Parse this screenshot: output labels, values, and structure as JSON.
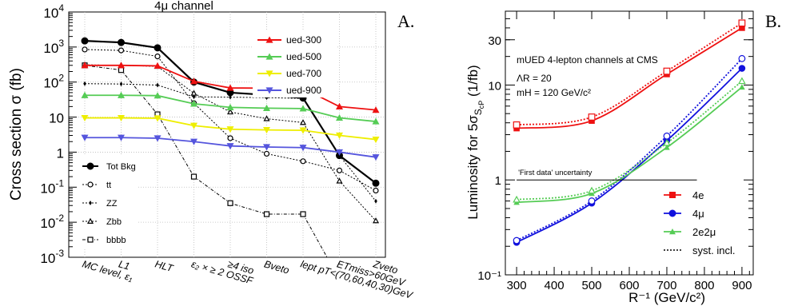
{
  "panels": {
    "a": "A.",
    "b": "B."
  },
  "chart_data": [
    {
      "type": "line",
      "title": "4μ channel",
      "ylabel": "Cross section σ (fb)",
      "yscale": "log",
      "ylim": [
        0.001,
        10000
      ],
      "grid": true,
      "categories": [
        "MC level, ε₁",
        "L1",
        "HLT",
        "ε₂ × ≥ 2 OSSF",
        "≥4 iso",
        "Bveto",
        "lept pT<(70,60,40,30)GeV",
        "ETmiss>60GeV",
        "Zveto"
      ],
      "yticks": [
        {
          "v": 0.001,
          "m": "10",
          "e": "-3"
        },
        {
          "v": 0.01,
          "m": "10",
          "e": "-2"
        },
        {
          "v": 0.1,
          "m": "10",
          "e": "-1"
        },
        {
          "v": 1,
          "m": "1",
          "e": ""
        },
        {
          "v": 10,
          "m": "10",
          "e": ""
        },
        {
          "v": 100,
          "m": "10",
          "e": "2"
        },
        {
          "v": 1000,
          "m": "10",
          "e": "3"
        },
        {
          "v": 10000,
          "m": "10",
          "e": "4"
        }
      ],
      "series": [
        {
          "name": "Tot Bkg",
          "color": "#000000",
          "marker": "filled-circle",
          "dash": "",
          "values": [
            1500,
            1350,
            950,
            100,
            50,
            43,
            35,
            0.8,
            0.13
          ]
        },
        {
          "name": "tt",
          "color": "#000000",
          "marker": "open-circle",
          "dash": "2,2",
          "values": [
            850,
            800,
            540,
            25,
            2.5,
            0.9,
            0.55,
            0.3,
            0.08
          ]
        },
        {
          "name": "ZZ",
          "color": "#000000",
          "marker": "diamond",
          "dash": "2,2",
          "values": [
            90,
            88,
            82,
            38,
            37,
            36,
            34,
            0.8,
            0.04
          ]
        },
        {
          "name": "Zbb",
          "color": "#000000",
          "marker": "open-triangle",
          "dash": "2,2",
          "values": [
            310,
            300,
            280,
            48,
            14,
            9,
            7,
            0.15,
            0.011
          ]
        },
        {
          "name": "bbbb",
          "color": "#000000",
          "marker": "open-square",
          "dash": "4,2,1,2",
          "values": [
            300,
            220,
            12,
            0.2,
            0.035,
            0.017,
            0.017,
            null,
            null
          ]
        },
        {
          "name": "ued-300",
          "color": "#ee1111",
          "marker": "filled-triangle-up",
          "dash": "",
          "values": [
            300,
            300,
            290,
            105,
            68,
            67,
            66,
            20,
            16
          ]
        },
        {
          "name": "ued-500",
          "color": "#55cc55",
          "marker": "filled-triangle-up",
          "dash": "",
          "values": [
            42,
            42,
            41,
            24,
            19,
            18,
            17.5,
            9.5,
            7.5
          ]
        },
        {
          "name": "ued-700",
          "color": "#eeee00",
          "marker": "filled-triangle-down",
          "dash": "",
          "values": [
            9.5,
            9.5,
            9.3,
            5.7,
            4.5,
            4.3,
            4.2,
            3.0,
            2.3
          ]
        },
        {
          "name": "ued-900",
          "color": "#5555dd",
          "marker": "filled-triangle-down",
          "dash": "",
          "values": [
            2.6,
            2.6,
            2.5,
            2.0,
            1.5,
            1.4,
            1.35,
            1.0,
            0.72
          ]
        }
      ],
      "legend_top": [
        "ued-300",
        "ued-500",
        "ued-700",
        "ued-900"
      ],
      "legend_bottom": [
        "Tot Bkg",
        "tt",
        "ZZ",
        "Zbb",
        "bbbb"
      ]
    },
    {
      "type": "line",
      "ylabel": "Luminosity for 5σ",
      "ylabel_sub": "S",
      "ylabel_subsub": "cP",
      "ylabel_unit": "(1/fb)",
      "xlabel": "R⁻¹ (GeV/c²)",
      "yscale": "log",
      "xlim": [
        270,
        930
      ],
      "ylim": [
        0.1,
        60
      ],
      "xticks": [
        300,
        400,
        500,
        600,
        700,
        800,
        900
      ],
      "yticks": [
        {
          "v": 0.1,
          "t": "10⁻¹"
        },
        {
          "v": 1,
          "t": "1"
        },
        {
          "v": 10,
          "t": "10"
        },
        {
          "v": 30,
          "t": "30"
        }
      ],
      "annotations": [
        "mUED 4-lepton channels at CMS",
        "ΛR = 20",
        "mH = 120 GeV/c²"
      ],
      "reference_line": {
        "label": "'First data' uncertainty",
        "y": 1,
        "x": [
          300,
          780
        ]
      },
      "x": [
        300,
        500,
        700,
        900
      ],
      "series": [
        {
          "name": "4e",
          "color": "#ee1111",
          "marker": "filled-square",
          "values": [
            3.5,
            4.2,
            13,
            40
          ]
        },
        {
          "name": "4e syst. incl.",
          "color": "#ee1111",
          "marker": "open-square",
          "dash": true,
          "values": [
            3.8,
            4.6,
            14,
            45
          ]
        },
        {
          "name": "4μ",
          "color": "#1111dd",
          "marker": "filled-circle",
          "values": [
            0.22,
            0.57,
            2.6,
            15
          ]
        },
        {
          "name": "4μ syst. incl.",
          "color": "#1111dd",
          "marker": "open-circle",
          "dash": true,
          "values": [
            0.23,
            0.6,
            2.9,
            19
          ]
        },
        {
          "name": "2e2μ",
          "color": "#55cc55",
          "marker": "filled-triangle-up",
          "values": [
            0.58,
            0.72,
            2.2,
            9.5
          ]
        },
        {
          "name": "2e2μ syst. incl.",
          "color": "#55cc55",
          "marker": "open-triangle-up",
          "dash": true,
          "values": [
            0.62,
            0.77,
            2.45,
            11
          ]
        }
      ],
      "legend": [
        {
          "label": "4e",
          "color": "#ee1111",
          "marker": "filled-square"
        },
        {
          "label": "4μ",
          "color": "#1111dd",
          "marker": "filled-circle"
        },
        {
          "label": "2e2μ",
          "color": "#55cc55",
          "marker": "filled-triangle-up"
        },
        {
          "label": "syst. incl.",
          "color": "#000000",
          "marker": "dotted-line"
        }
      ]
    }
  ]
}
